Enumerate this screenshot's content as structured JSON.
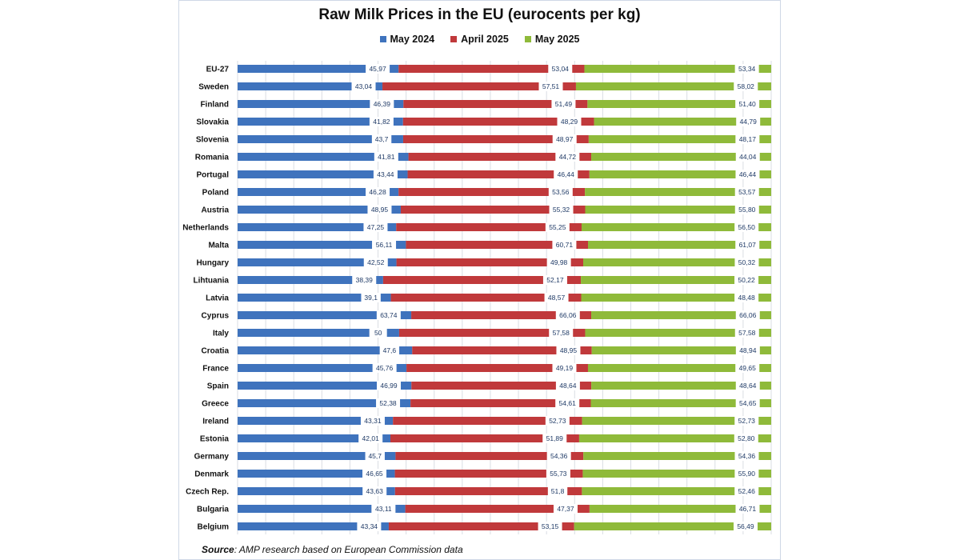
{
  "source": {
    "label": "Source",
    "text": ": AMP research based on European Commission data"
  },
  "colors": {
    "may_2024": "#3f73bd",
    "april_2025": "#c0393b",
    "may_2025": "#8fba3a"
  },
  "chart_data": {
    "type": "bar",
    "title": "Raw Milk Prices in the EU (eurocents per kg)",
    "legend_position": "top",
    "grid": true,
    "categories": [
      "EU-27",
      "Sweden",
      "Finland",
      "Slovakia",
      "Slovenia",
      "Romania",
      "Portugal",
      "Poland",
      "Austria",
      "Netherlands",
      "Malta",
      "Hungary",
      "Lihtuania",
      "Latvia",
      "Cyprus",
      "Italy",
      "Croatia",
      "France",
      "Spain",
      "Greece",
      "Ireland",
      "Estonia",
      "Germany",
      "Denmark",
      "Czech Rep.",
      "Bulgaria",
      "Belgium"
    ],
    "series": [
      {
        "name": "May 2024",
        "values": [
          45.97,
          43.04,
          46.39,
          41.82,
          43.7,
          41.81,
          43.44,
          46.28,
          48.95,
          47.25,
          56.11,
          42.52,
          38.39,
          39.1,
          63.74,
          50,
          47.6,
          45.76,
          46.99,
          52.38,
          43.31,
          42.01,
          45.7,
          46.65,
          43.63,
          43.11,
          43.34
        ],
        "labels": [
          "45,97",
          "43,04",
          "46,39",
          "41,82",
          "43,7",
          "41,81",
          "43,44",
          "46,28",
          "48,95",
          "47,25",
          "56,11",
          "42,52",
          "38,39",
          "39,1",
          "63,74",
          "50",
          "47,6",
          "45,76",
          "46,99",
          "52,38",
          "43,31",
          "42,01",
          "45,7",
          "46,65",
          "43,63",
          "43,11",
          "43,34"
        ]
      },
      {
        "name": "April 2025",
        "values": [
          53.04,
          57.51,
          51.49,
          48.29,
          48.97,
          44.72,
          46.44,
          53.56,
          55.32,
          55.25,
          60.71,
          49.98,
          52.17,
          48.57,
          66.06,
          57.58,
          48.95,
          49.19,
          48.64,
          54.61,
          52.73,
          51.89,
          54.36,
          55.73,
          51.8,
          47.37,
          53.15
        ],
        "labels": [
          "53,04",
          "57,51",
          "51,49",
          "48,29",
          "48,97",
          "44,72",
          "46,44",
          "53,56",
          "55,32",
          "55,25",
          "60,71",
          "49,98",
          "52,17",
          "48,57",
          "66,06",
          "57,58",
          "48,95",
          "49,19",
          "48,64",
          "54,61",
          "52,73",
          "51,89",
          "54,36",
          "55,73",
          "51,8",
          "47,37",
          "53,15"
        ]
      },
      {
        "name": "May 2025",
        "values": [
          53.34,
          58.02,
          51.4,
          44.79,
          48.17,
          44.04,
          46.44,
          53.57,
          55.8,
          56.5,
          61.07,
          50.32,
          50.22,
          48.48,
          66.06,
          57.58,
          48.94,
          49.65,
          48.64,
          54.65,
          52.73,
          52.8,
          54.36,
          55.9,
          52.46,
          46.71,
          56.49
        ],
        "labels": [
          "53,34",
          "58,02",
          "51,40",
          "44,79",
          "48,17",
          "44,04",
          "46,44",
          "53,57",
          "55,80",
          "56,50",
          "61,07",
          "50,32",
          "50,22",
          "48,48",
          "66,06",
          "57,58",
          "48,94",
          "49,65",
          "48,64",
          "54,65",
          "52,73",
          "52,80",
          "54,36",
          "55,90",
          "52,46",
          "46,71",
          "56,49"
        ]
      }
    ]
  }
}
